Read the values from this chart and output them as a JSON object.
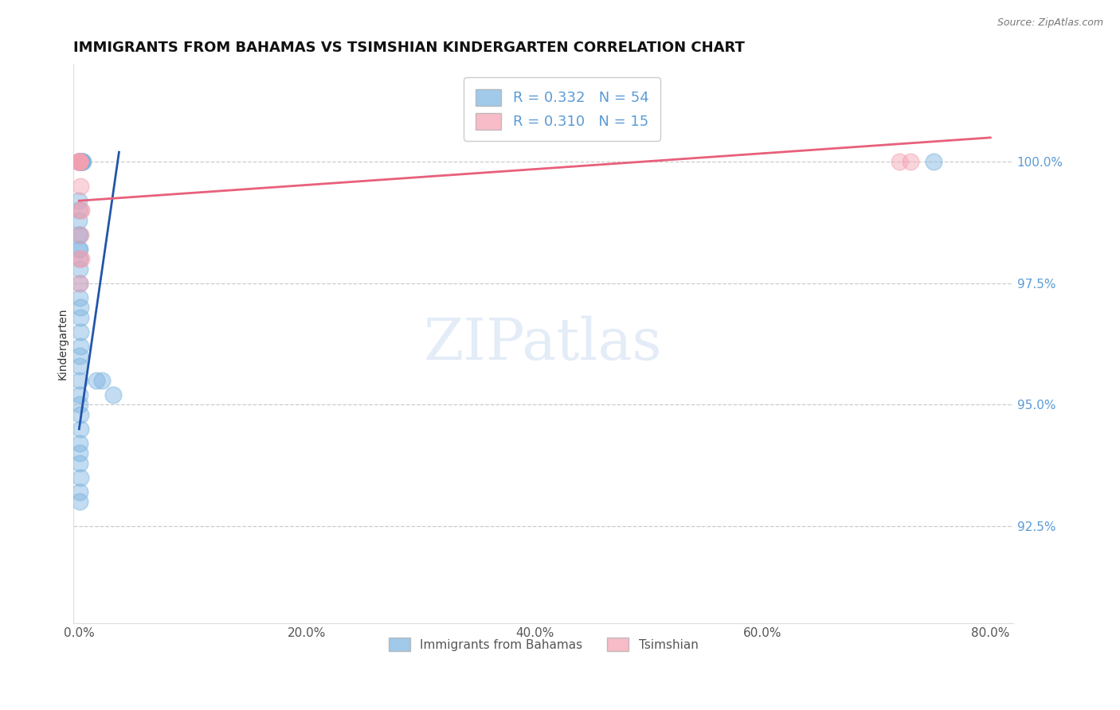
{
  "title": "IMMIGRANTS FROM BAHAMAS VS TSIMSHIAN KINDERGARTEN CORRELATION CHART",
  "source_text": "Source: ZipAtlas.com",
  "ylabel": "Kindergarten",
  "x_tick_labels": [
    "0.0%",
    "20.0%",
    "40.0%",
    "60.0%",
    "80.0%"
  ],
  "x_tick_values": [
    0.0,
    20.0,
    40.0,
    60.0,
    80.0
  ],
  "y_tick_labels": [
    "92.5%",
    "95.0%",
    "97.5%",
    "100.0%"
  ],
  "y_tick_values": [
    92.5,
    95.0,
    97.5,
    100.0
  ],
  "xlim": [
    -0.5,
    82.0
  ],
  "ylim": [
    90.5,
    102.0
  ],
  "legend_entries": [
    {
      "label": "R = 0.332   N = 54",
      "color": "#7ab3e0"
    },
    {
      "label": "R = 0.310   N = 15",
      "color": "#f4a0b0"
    }
  ],
  "legend_labels_bottom": [
    "Immigrants from Bahamas",
    "Tsimshian"
  ],
  "blue_scatter_x": [
    0.0,
    0.0,
    0.05,
    0.05,
    0.05,
    0.08,
    0.08,
    0.08,
    0.08,
    0.1,
    0.1,
    0.1,
    0.12,
    0.12,
    0.15,
    0.15,
    0.18,
    0.2,
    0.22,
    0.25,
    0.28,
    0.35,
    0.0,
    0.0,
    0.0,
    0.0,
    0.0,
    0.05,
    0.05,
    0.05,
    0.05,
    0.08,
    0.08,
    0.1,
    0.1,
    0.12,
    0.15,
    0.05,
    0.08,
    0.05,
    0.05,
    0.08,
    0.1,
    0.12,
    0.05,
    0.05,
    0.08,
    0.1,
    0.05,
    0.08,
    1.5,
    2.0,
    3.0,
    75.0
  ],
  "blue_scatter_y": [
    100.0,
    100.0,
    100.0,
    100.0,
    100.0,
    100.0,
    100.0,
    100.0,
    100.0,
    100.0,
    100.0,
    100.0,
    100.0,
    100.0,
    100.0,
    100.0,
    100.0,
    100.0,
    100.0,
    100.0,
    100.0,
    100.0,
    99.2,
    99.0,
    98.8,
    98.5,
    98.2,
    98.5,
    98.2,
    98.0,
    97.8,
    97.5,
    97.2,
    97.0,
    96.8,
    96.5,
    96.2,
    96.0,
    95.8,
    95.5,
    95.2,
    95.0,
    94.8,
    94.5,
    94.2,
    94.0,
    93.8,
    93.5,
    93.2,
    93.0,
    95.5,
    95.5,
    95.2,
    100.0
  ],
  "pink_scatter_x": [
    0.0,
    0.0,
    0.05,
    0.05,
    0.08,
    0.08,
    0.1,
    0.12,
    0.15,
    0.18,
    0.2,
    0.05,
    0.08,
    72.0,
    73.0
  ],
  "pink_scatter_y": [
    100.0,
    100.0,
    100.0,
    100.0,
    100.0,
    100.0,
    99.5,
    99.0,
    98.5,
    98.0,
    99.0,
    98.0,
    97.5,
    100.0,
    100.0
  ],
  "blue_line_x": [
    0.0,
    3.5
  ],
  "blue_line_y": [
    94.5,
    100.2
  ],
  "pink_line_x": [
    0.0,
    80.0
  ],
  "pink_line_y": [
    99.2,
    100.5
  ],
  "blue_color": "#7ab3e0",
  "pink_color": "#f4a0b0",
  "blue_line_color": "#2255aa",
  "pink_line_color": "#e8607a",
  "grid_color": "#cccccc",
  "title_fontsize": 13,
  "axis_label_fontsize": 10,
  "tick_fontsize": 11,
  "legend_fontsize": 13
}
